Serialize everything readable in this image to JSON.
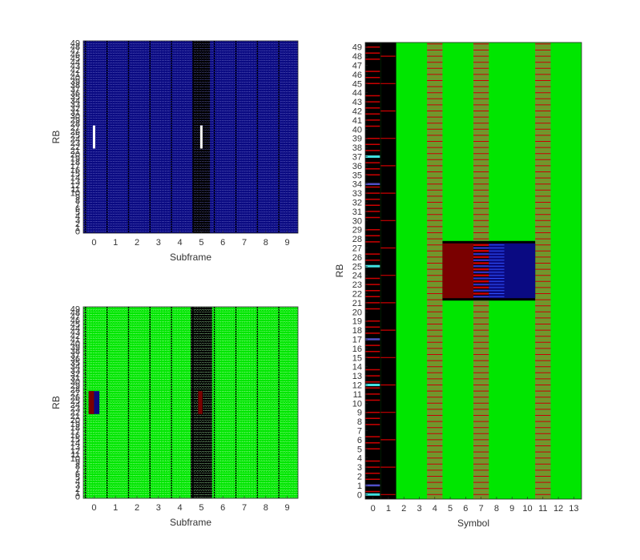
{
  "chart_data": [
    {
      "type": "heatmap",
      "id": "top-left",
      "xlabel": "Subframe",
      "ylabel": "RB",
      "x_ticks": [
        "0",
        "1",
        "2",
        "3",
        "4",
        "5",
        "6",
        "7",
        "8",
        "9"
      ],
      "y_ticks": [
        "0",
        "1",
        "2",
        "3",
        "4",
        "5",
        "6",
        "7",
        "8",
        "9",
        "10",
        "11",
        "12",
        "13",
        "14",
        "15",
        "16",
        "17",
        "18",
        "19",
        "20",
        "21",
        "22",
        "23",
        "24",
        "25",
        "26",
        "27",
        "28",
        "29",
        "30",
        "31",
        "32",
        "33",
        "34",
        "35",
        "36",
        "37",
        "38",
        "39",
        "40",
        "41",
        "42",
        "43",
        "44",
        "45",
        "46",
        "47",
        "48",
        "49"
      ],
      "xlim": [
        -0.5,
        9.5
      ],
      "ylim": [
        -0.5,
        49.5
      ],
      "background_color": "#0a0a82",
      "dark_columns": [
        [
          4.6,
          5.4
        ]
      ],
      "markers": [
        {
          "x": 0,
          "rb_from": 22,
          "rb_to": 27,
          "color": "#ffffff"
        },
        {
          "x": 5,
          "rb_from": 22,
          "rb_to": 27,
          "color": "#ffffff"
        }
      ]
    },
    {
      "type": "heatmap",
      "id": "bottom-left",
      "xlabel": "Subframe",
      "ylabel": "RB",
      "x_ticks": [
        "0",
        "1",
        "2",
        "3",
        "4",
        "5",
        "6",
        "7",
        "8",
        "9"
      ],
      "y_ticks": [
        "0",
        "1",
        "2",
        "3",
        "4",
        "5",
        "6",
        "7",
        "8",
        "9",
        "10",
        "11",
        "12",
        "13",
        "14",
        "15",
        "16",
        "17",
        "18",
        "19",
        "20",
        "21",
        "22",
        "23",
        "24",
        "25",
        "26",
        "27",
        "28",
        "29",
        "30",
        "31",
        "32",
        "33",
        "34",
        "35",
        "36",
        "37",
        "38",
        "39",
        "40",
        "41",
        "42",
        "43",
        "44",
        "45",
        "46",
        "47",
        "48",
        "49"
      ],
      "xlim": [
        -0.5,
        9.5
      ],
      "ylim": [
        -0.5,
        49.5
      ],
      "background_color": "#00e600",
      "dark_columns": [
        [
          4.5,
          5.5
        ]
      ],
      "blocks": [
        {
          "x_from": -0.25,
          "x_to": 0.25,
          "rb_from": 22,
          "rb_to": 27,
          "color": "#0a0a82"
        },
        {
          "x_from": -0.25,
          "x_to": 0.0,
          "rb_from": 22,
          "rb_to": 27,
          "color": "#7a0000"
        },
        {
          "x_from": 4.85,
          "x_to": 5.05,
          "rb_from": 22,
          "rb_to": 27,
          "color": "#7a0000"
        }
      ]
    },
    {
      "type": "heatmap",
      "id": "right",
      "xlabel": "Symbol",
      "ylabel": "RB",
      "x_ticks": [
        "0",
        "1",
        "2",
        "3",
        "4",
        "5",
        "6",
        "7",
        "8",
        "9",
        "10",
        "11",
        "12",
        "13"
      ],
      "y_ticks": [
        "0",
        "1",
        "2",
        "3",
        "4",
        "5",
        "6",
        "7",
        "8",
        "9",
        "10",
        "11",
        "12",
        "13",
        "14",
        "15",
        "16",
        "17",
        "18",
        "19",
        "20",
        "21",
        "22",
        "23",
        "24",
        "25",
        "26",
        "27",
        "28",
        "29",
        "30",
        "31",
        "32",
        "33",
        "34",
        "35",
        "36",
        "37",
        "38",
        "39",
        "40",
        "41",
        "42",
        "43",
        "44",
        "45",
        "46",
        "47",
        "48",
        "49"
      ],
      "xlim": [
        -0.5,
        13.5
      ],
      "ylim": [
        -0.5,
        49.5
      ],
      "background_color": "#00e600",
      "control_region_symbols": [
        0,
        1
      ],
      "reference_signal_symbols": [
        4,
        7,
        11
      ],
      "pdsch_allocation": {
        "rb_from": 22,
        "rb_to": 27,
        "symbol_from": 5,
        "symbol_to": 10
      },
      "colors": {
        "data_red": "#7a0000",
        "data_blue": "#0a0a82",
        "control_black": "#000000",
        "reference_red": "#cc0000",
        "cyan": "#40e0e0",
        "green": "#00e600"
      }
    }
  ]
}
